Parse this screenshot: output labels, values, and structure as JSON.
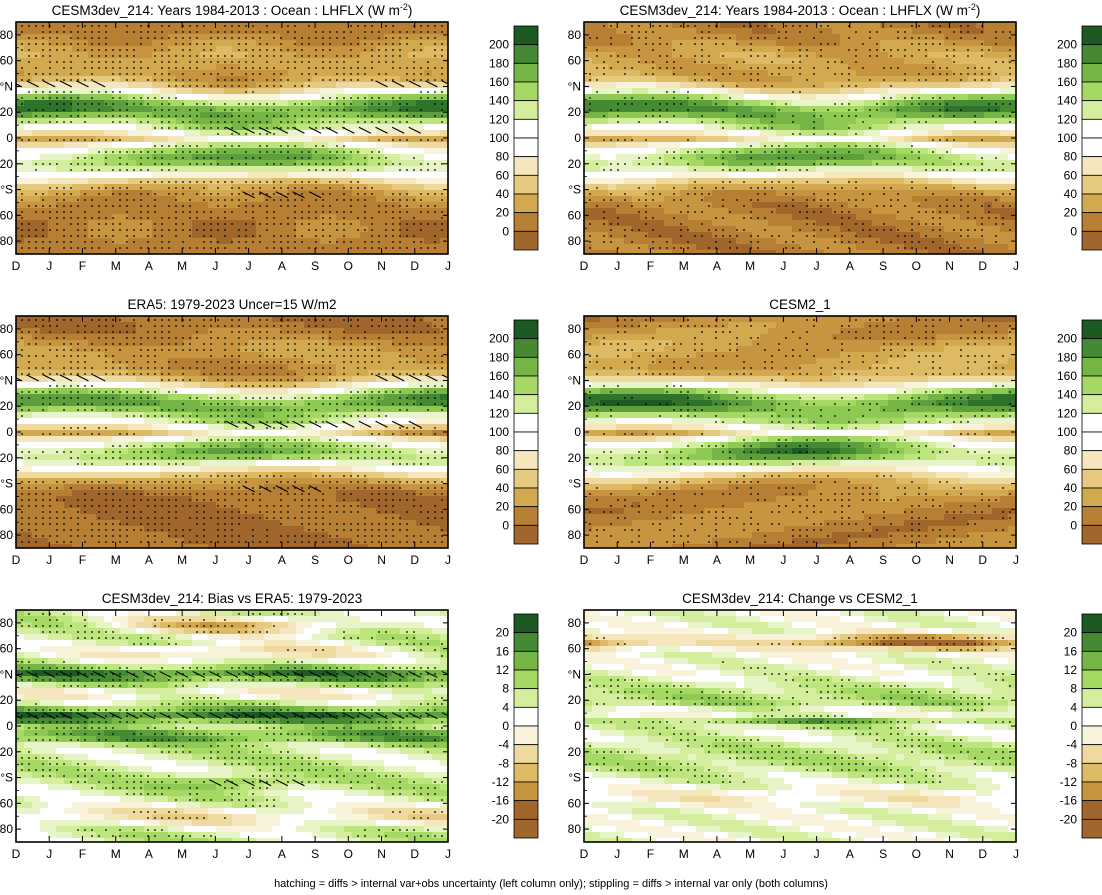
{
  "figure": {
    "footer_note": "hatching = diffs > internal var+obs uncertainty (left column only); stippling = diffs > internal var only (both columns)"
  },
  "colors": {
    "diverging": [
      "#a0662b",
      "#b77f33",
      "#c7953f",
      "#d3a94f",
      "#deba64",
      "#e6ca80",
      "#eed99f",
      "#f5e6be",
      "#faf3dc",
      "#ffffff",
      "#ffffff",
      "#e8f5c8",
      "#d4ee9e",
      "#bde57e",
      "#a6d964",
      "#8dc953",
      "#74b546",
      "#5c9f3c",
      "#458933",
      "#2f722b",
      "#1d5a23"
    ]
  },
  "chart_data": [
    {
      "type": "heatmap",
      "title": "CESM3dev_214: Years 1984-2013 : Ocean : LHFLX (W m^-2)",
      "title_main": "CESM3dev_214: Years 1984-2013 : Ocean : LHFLX (W m",
      "title_sup": "-2",
      "title_end": ")",
      "variable": "LHFLX",
      "units": "W m^-2",
      "x_months": [
        "D",
        "J",
        "F",
        "M",
        "A",
        "M",
        "J",
        "J",
        "A",
        "S",
        "O",
        "N",
        "D",
        "J"
      ],
      "y_ticks": [
        "80",
        "60",
        "40",
        "20",
        "0",
        "20",
        "40",
        "60",
        "80"
      ],
      "y_tick_labels_shown": [
        "80",
        "60",
        "°N",
        "20",
        "0",
        "20",
        "°S",
        "60",
        "80"
      ],
      "ylim": [
        -90,
        90
      ],
      "colorbar_labels": [
        "200",
        "180",
        "160",
        "140",
        "120",
        "100",
        "80",
        "60",
        "40",
        "20",
        "0"
      ],
      "colorbar_range": [
        -10,
        210
      ],
      "kind": "field",
      "variant": 0,
      "hatching": true,
      "stippling": true
    },
    {
      "type": "heatmap",
      "title": "CESM3dev_214: Years 1984-2013 : Ocean : LHFLX (W m^-2)",
      "title_main": "CESM3dev_214: Years 1984-2013 : Ocean : LHFLX (W m",
      "title_sup": "-2",
      "title_end": ")",
      "variable": "LHFLX",
      "units": "W m^-2",
      "x_months": [
        "D",
        "J",
        "F",
        "M",
        "A",
        "M",
        "J",
        "J",
        "A",
        "S",
        "O",
        "N",
        "D",
        "J"
      ],
      "y_ticks": [
        "80",
        "60",
        "40",
        "20",
        "0",
        "20",
        "40",
        "60",
        "80"
      ],
      "y_tick_labels_shown": [
        "80",
        "60",
        "°N",
        "20",
        "0",
        "20",
        "°S",
        "60",
        "80"
      ],
      "ylim": [
        -90,
        90
      ],
      "colorbar_labels": [
        "200",
        "180",
        "160",
        "140",
        "120",
        "100",
        "80",
        "60",
        "40",
        "20",
        "0"
      ],
      "colorbar_range": [
        -10,
        210
      ],
      "kind": "field",
      "variant": 1,
      "hatching": false,
      "stippling": true
    },
    {
      "type": "heatmap",
      "title": "ERA5: 1979-2023 Uncer=15 W/m2",
      "title_main": "ERA5: 1979-2023 Uncer=15 W/m2",
      "title_sup": "",
      "title_end": "",
      "dataset": "ERA5",
      "period": "1979-2023",
      "uncertainty": "15 W/m2",
      "x_months": [
        "D",
        "J",
        "F",
        "M",
        "A",
        "M",
        "J",
        "J",
        "A",
        "S",
        "O",
        "N",
        "D",
        "J"
      ],
      "y_ticks": [
        "80",
        "60",
        "40",
        "20",
        "0",
        "20",
        "40",
        "60",
        "80"
      ],
      "y_tick_labels_shown": [
        "80",
        "60",
        "°N",
        "20",
        "0",
        "20",
        "°S",
        "60",
        "80"
      ],
      "ylim": [
        -90,
        90
      ],
      "colorbar_labels": [
        "200",
        "180",
        "160",
        "140",
        "120",
        "100",
        "80",
        "60",
        "40",
        "20",
        "0"
      ],
      "colorbar_range": [
        -10,
        210
      ],
      "kind": "field",
      "variant": 2,
      "hatching": true,
      "stippling": true
    },
    {
      "type": "heatmap",
      "title": "CESM2_1",
      "title_main": "CESM2_1",
      "title_sup": "",
      "title_end": "",
      "x_months": [
        "D",
        "J",
        "F",
        "M",
        "A",
        "M",
        "J",
        "J",
        "A",
        "S",
        "O",
        "N",
        "D",
        "J"
      ],
      "y_ticks": [
        "80",
        "60",
        "40",
        "20",
        "0",
        "20",
        "40",
        "60",
        "80"
      ],
      "y_tick_labels_shown": [
        "80",
        "60",
        "°N",
        "20",
        "0",
        "20",
        "°S",
        "60",
        "80"
      ],
      "ylim": [
        -90,
        90
      ],
      "colorbar_labels": [
        "200",
        "180",
        "160",
        "140",
        "120",
        "100",
        "80",
        "60",
        "40",
        "20",
        "0"
      ],
      "colorbar_range": [
        -10,
        210
      ],
      "kind": "field",
      "variant": 3,
      "hatching": false,
      "stippling": true
    },
    {
      "type": "heatmap",
      "title": "CESM3dev_214: Bias vs ERA5: 1979-2023",
      "title_main": "CESM3dev_214: Bias vs ERA5: 1979-2023",
      "title_sup": "",
      "title_end": "",
      "x_months": [
        "D",
        "J",
        "F",
        "M",
        "A",
        "M",
        "J",
        "J",
        "A",
        "S",
        "O",
        "N",
        "D",
        "J"
      ],
      "y_ticks": [
        "80",
        "60",
        "40",
        "20",
        "0",
        "20",
        "40",
        "60",
        "80"
      ],
      "y_tick_labels_shown": [
        "80",
        "60",
        "°N",
        "20",
        "0",
        "20",
        "°S",
        "60",
        "80"
      ],
      "ylim": [
        -90,
        90
      ],
      "colorbar_labels": [
        "20",
        "16",
        "12",
        "8",
        "4",
        "0",
        "-4",
        "-8",
        "-12",
        "-16",
        "-20"
      ],
      "colorbar_range": [
        -22,
        22
      ],
      "kind": "diff",
      "variant": 4,
      "hatching": true,
      "stippling": true
    },
    {
      "type": "heatmap",
      "title": "CESM3dev_214: Change vs CESM2_1",
      "title_main": "CESM3dev_214: Change vs CESM2_1",
      "title_sup": "",
      "title_end": "",
      "x_months": [
        "D",
        "J",
        "F",
        "M",
        "A",
        "M",
        "J",
        "J",
        "A",
        "S",
        "O",
        "N",
        "D",
        "J"
      ],
      "y_ticks": [
        "80",
        "60",
        "40",
        "20",
        "0",
        "20",
        "40",
        "60",
        "80"
      ],
      "y_tick_labels_shown": [
        "80",
        "60",
        "°N",
        "20",
        "0",
        "20",
        "°S",
        "60",
        "80"
      ],
      "ylim": [
        -90,
        90
      ],
      "colorbar_labels": [
        "20",
        "16",
        "12",
        "8",
        "4",
        "0",
        "-4",
        "-8",
        "-12",
        "-16",
        "-20"
      ],
      "colorbar_range": [
        -22,
        22
      ],
      "kind": "diff",
      "variant": 5,
      "hatching": false,
      "stippling": true
    }
  ]
}
